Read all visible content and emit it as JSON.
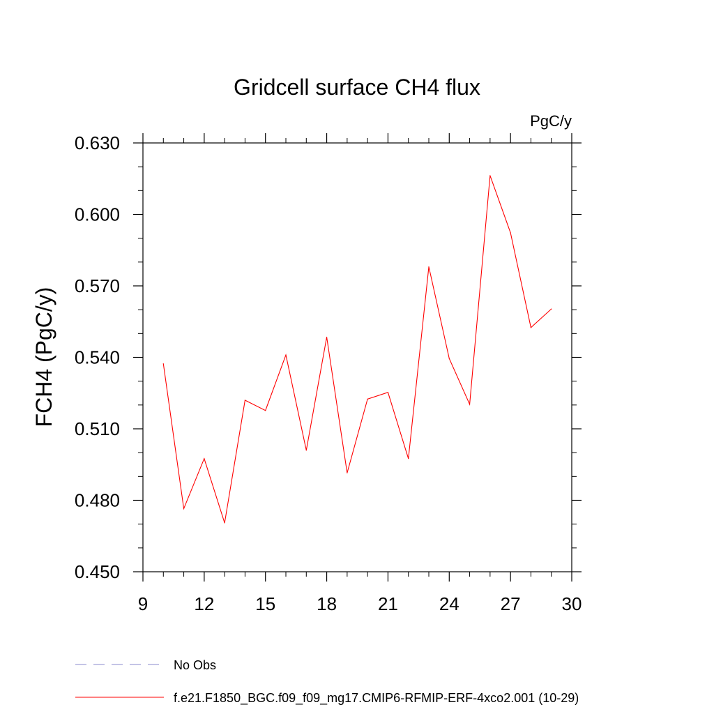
{
  "chart_data": {
    "type": "line",
    "title": "Gridcell surface CH4 flux",
    "units_label": "PgC/y",
    "ylabel": "FCH4  (PgC/y)",
    "xlabel": "",
    "xlim": [
      9,
      30
    ],
    "ylim": [
      0.45,
      0.63
    ],
    "x_ticks": [
      9,
      12,
      15,
      18,
      21,
      24,
      27,
      30
    ],
    "x_tick_labels": [
      "9",
      "12",
      "15",
      "18",
      "21",
      "24",
      "27",
      "30"
    ],
    "x_minor_step": 1,
    "y_ticks": [
      0.45,
      0.48,
      0.51,
      0.54,
      0.57,
      0.6,
      0.63
    ],
    "y_tick_labels": [
      "0.450",
      "0.480",
      "0.510",
      "0.540",
      "0.570",
      "0.600",
      "0.630"
    ],
    "y_minor_step": 0.01,
    "grid": false,
    "legend_position": "bottom-left",
    "series": [
      {
        "name": "f.e21.F1850_BGC.f09_f09_mg17.CMIP6-RFMIP-ERF-4xco2.001 (10-29)",
        "color": "#ff0000",
        "x": [
          10,
          11,
          12,
          13,
          14,
          15,
          16,
          17,
          18,
          19,
          20,
          21,
          22,
          23,
          24,
          25,
          26,
          27,
          28,
          29
        ],
        "y": [
          0.5373,
          0.4765,
          0.4975,
          0.4705,
          0.522,
          0.5177,
          0.541,
          0.501,
          0.5485,
          0.4915,
          0.5225,
          0.5253,
          0.4975,
          0.578,
          0.5395,
          0.5203,
          0.6163,
          0.5923,
          0.5525,
          0.5603
        ]
      }
    ],
    "legend": [
      {
        "label": "No Obs",
        "color": "#8888cc",
        "style": "dashed"
      },
      {
        "label": "f.e21.F1850_BGC.f09_f09_mg17.CMIP6-RFMIP-ERF-4xco2.001 (10-29)",
        "color": "#ff0000",
        "style": "solid"
      }
    ]
  }
}
